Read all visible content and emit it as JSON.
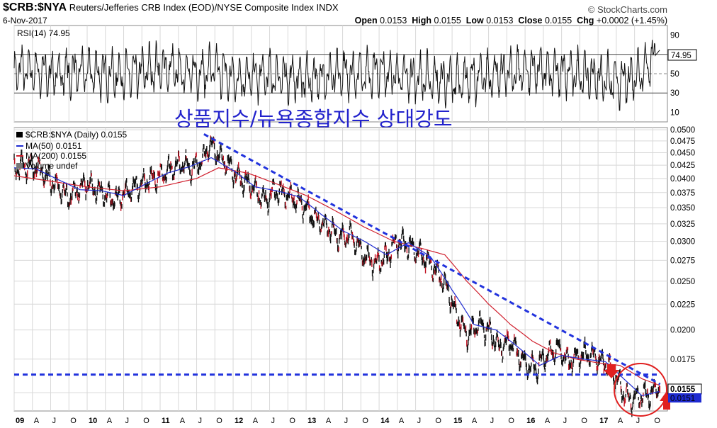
{
  "header": {
    "symbol": "$CRB:$NYA",
    "description": "Reuters/Jefferies CRB Index (EOD)/NYSE Composite Index INDX",
    "date": "6-Nov-2017",
    "brand": "© StockCharts.com",
    "open_label": "Open",
    "open": "0.0153",
    "high_label": "High",
    "high": "0.0155",
    "low_label": "Low",
    "low": "0.0153",
    "close_label": "Close",
    "close": "0.0155",
    "chg_label": "Chg",
    "chg": "+0.0002 (+1.45%)"
  },
  "annotation": {
    "text": "상품지수/뉴욕종합지수 상대강도",
    "color": "#2222cc"
  },
  "colors": {
    "price": "#000000",
    "ma50": "#1f2bd1",
    "ma200": "#d0202e",
    "trend": "#2233dd",
    "circle": "#e02020",
    "grid": "#d8d8d8"
  },
  "chart_data": [
    {
      "type": "line",
      "panel": "RSI",
      "legend": "RSI(14) 74.95",
      "last_value_label": "74.95",
      "y_ticks": [
        "90",
        "70",
        "50",
        "30",
        "10"
      ],
      "ylim": [
        0,
        100
      ],
      "reference_lines": [
        70,
        50,
        30
      ],
      "series": [
        {
          "name": "RSI(14)",
          "x": [
            2009.0,
            2009.5,
            2010.0,
            2010.5,
            2011.0,
            2011.5,
            2011.75,
            2012.0,
            2012.5,
            2013.0,
            2013.5,
            2014.0,
            2014.5,
            2015.0,
            2015.5,
            2016.0,
            2016.5,
            2017.0,
            2017.3,
            2017.6,
            2017.85
          ],
          "values": [
            55,
            50,
            52,
            48,
            56,
            50,
            55,
            45,
            48,
            44,
            50,
            52,
            46,
            42,
            48,
            54,
            52,
            46,
            40,
            52,
            75
          ]
        }
      ]
    },
    {
      "type": "line",
      "panel": "price",
      "legend": [
        "$CRB:$NYA (Daily) 0.0155",
        "MA(50) 0.0151",
        "MA(200) 0.0155",
        "Volume undef"
      ],
      "last_value_labels": [
        "0.0155",
        "0.0151"
      ],
      "y_ticks": [
        "0.0500",
        "0.0475",
        "0.0450",
        "0.0425",
        "0.0400",
        "0.0375",
        "0.0350",
        "0.0325",
        "0.0300",
        "0.0275",
        "0.0250",
        "0.0225",
        "0.0200",
        "0.0175",
        "0.0150"
      ],
      "y_scale": "log",
      "ylim": [
        0.0138,
        0.0505
      ],
      "x_ticks": [
        "09",
        "A",
        "J",
        "O",
        "10",
        "A",
        "J",
        "O",
        "11",
        "A",
        "J",
        "O",
        "12",
        "A",
        "J",
        "O",
        "13",
        "A",
        "J",
        "O",
        "14",
        "A",
        "J",
        "O",
        "15",
        "A",
        "J",
        "O",
        "16",
        "A",
        "J",
        "O",
        "17",
        "A",
        "J",
        "O"
      ],
      "xlim": [
        2009.0,
        2017.95
      ],
      "series": [
        {
          "name": "$CRB:$NYA (Daily)",
          "x": [
            2009.0,
            2009.1,
            2009.3,
            2009.55,
            2009.75,
            2009.9,
            2010.0,
            2010.2,
            2010.4,
            2010.55,
            2010.8,
            2011.0,
            2011.15,
            2011.3,
            2011.45,
            2011.6,
            2011.68,
            2011.75,
            2011.9,
            2012.05,
            2012.25,
            2012.45,
            2012.55,
            2012.7,
            2012.9,
            2013.1,
            2013.3,
            2013.45,
            2013.6,
            2013.8,
            2013.95,
            2014.1,
            2014.25,
            2014.4,
            2014.55,
            2014.7,
            2014.85,
            2014.95,
            2015.05,
            2015.2,
            2015.35,
            2015.5,
            2015.65,
            2015.8,
            2015.95,
            2016.05,
            2016.15,
            2016.3,
            2016.45,
            2016.6,
            2016.75,
            2016.9,
            2017.05,
            2017.15,
            2017.25,
            2017.35,
            2017.45,
            2017.6,
            2017.75,
            2017.85
          ],
          "values": [
            0.0415,
            0.0425,
            0.042,
            0.039,
            0.0365,
            0.0385,
            0.039,
            0.0375,
            0.0362,
            0.0378,
            0.0395,
            0.0405,
            0.042,
            0.0428,
            0.0418,
            0.044,
            0.047,
            0.0455,
            0.043,
            0.0405,
            0.0385,
            0.036,
            0.0378,
            0.0375,
            0.036,
            0.0335,
            0.032,
            0.0305,
            0.031,
            0.028,
            0.027,
            0.028,
            0.03,
            0.0295,
            0.0285,
            0.027,
            0.0255,
            0.024,
            0.0215,
            0.0195,
            0.0205,
            0.02,
            0.0185,
            0.019,
            0.0175,
            0.017,
            0.0168,
            0.0178,
            0.0185,
            0.0172,
            0.0178,
            0.018,
            0.0172,
            0.017,
            0.016,
            0.015,
            0.0145,
            0.0148,
            0.015,
            0.0155
          ]
        },
        {
          "name": "MA(50)",
          "x": [
            2009.0,
            2009.3,
            2009.6,
            2009.9,
            2010.2,
            2010.5,
            2010.8,
            2011.1,
            2011.4,
            2011.7,
            2012.0,
            2012.3,
            2012.6,
            2012.9,
            2013.2,
            2013.5,
            2013.8,
            2014.1,
            2014.4,
            2014.7,
            2015.0,
            2015.3,
            2015.6,
            2015.9,
            2016.2,
            2016.5,
            2016.8,
            2017.1,
            2017.35,
            2017.6,
            2017.85
          ],
          "values": [
            0.042,
            0.0418,
            0.0398,
            0.038,
            0.0378,
            0.037,
            0.039,
            0.041,
            0.0422,
            0.044,
            0.0415,
            0.0385,
            0.0378,
            0.0368,
            0.034,
            0.0315,
            0.03,
            0.0282,
            0.0298,
            0.028,
            0.024,
            0.0205,
            0.02,
            0.0185,
            0.017,
            0.0178,
            0.0175,
            0.0173,
            0.016,
            0.0148,
            0.0151
          ]
        },
        {
          "name": "MA(200)",
          "x": [
            2009.0,
            2009.5,
            2010.0,
            2010.5,
            2011.0,
            2011.5,
            2011.8,
            2012.2,
            2012.6,
            2013.0,
            2013.4,
            2013.8,
            2014.2,
            2014.6,
            2014.9,
            2015.2,
            2015.5,
            2015.8,
            2016.1,
            2016.4,
            2016.7,
            2017.0,
            2017.3,
            2017.6,
            2017.85
          ],
          "values": [
            0.0405,
            0.0395,
            0.0385,
            0.0378,
            0.0385,
            0.04,
            0.042,
            0.041,
            0.039,
            0.037,
            0.0345,
            0.032,
            0.03,
            0.029,
            0.0282,
            0.025,
            0.0225,
            0.0205,
            0.019,
            0.018,
            0.0175,
            0.0172,
            0.017,
            0.016,
            0.0155
          ]
        },
        {
          "name": "trendline",
          "x": [
            2011.6,
            2017.85
          ],
          "values": [
            0.049,
            0.0156
          ]
        },
        {
          "name": "support",
          "x": [
            2009.0,
            2017.85
          ],
          "values": [
            0.0163,
            0.0163
          ]
        }
      ]
    }
  ]
}
